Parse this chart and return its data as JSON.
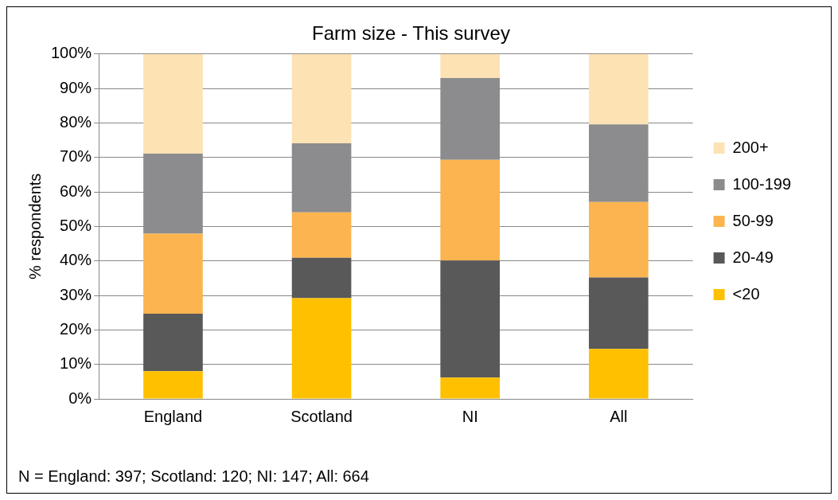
{
  "chart_data": {
    "type": "bar",
    "title": "Farm size - This survey",
    "ylabel": "% respondents",
    "categories": [
      "England",
      "Scotland",
      "NI",
      "All"
    ],
    "stacked": true,
    "series": [
      {
        "name": "<20",
        "color": "#ffc000",
        "values": [
          8,
          29.2,
          6.2,
          14.5
        ]
      },
      {
        "name": "20-49",
        "color": "#595959",
        "values": [
          16.7,
          11.7,
          33.9,
          20.7
        ]
      },
      {
        "name": "50-99",
        "color": "#fbb44f",
        "values": [
          23.2,
          13.2,
          29.2,
          21.9
        ]
      },
      {
        "name": "100-199",
        "color": "#8c8c8e",
        "values": [
          23.2,
          20,
          23.7,
          22.5
        ]
      },
      {
        "name": "200+",
        "color": "#fde2b4",
        "values": [
          28.9,
          25.9,
          7,
          20.4
        ]
      }
    ],
    "ylim": [
      0,
      100
    ],
    "yticks": [
      {
        "value": 0,
        "label": "0%"
      },
      {
        "value": 10,
        "label": "10%"
      },
      {
        "value": 20,
        "label": "20%"
      },
      {
        "value": 30,
        "label": "30%"
      },
      {
        "value": 40,
        "label": "40%"
      },
      {
        "value": 50,
        "label": "50%"
      },
      {
        "value": 60,
        "label": "60%"
      },
      {
        "value": 70,
        "label": "70%"
      },
      {
        "value": 80,
        "label": "80%"
      },
      {
        "value": 90,
        "label": "90%"
      },
      {
        "value": 100,
        "label": "100%"
      }
    ],
    "grid": "y",
    "legend": "right",
    "annotations": [
      "N = England: 397; Scotland: 120; NI: 147; All: 664"
    ]
  }
}
